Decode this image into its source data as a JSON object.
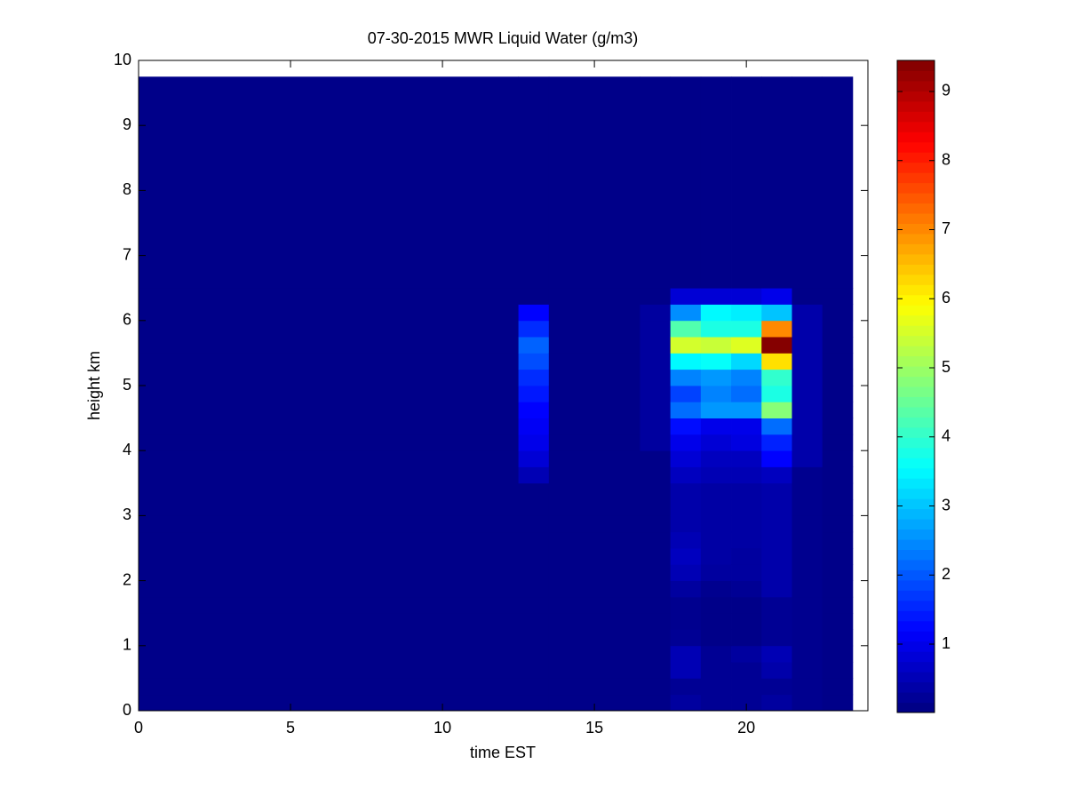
{
  "chart_data": {
    "type": "heatmap",
    "title": "07-30-2015 MWR Liquid Water (g/m3)",
    "x_label": "time EST",
    "y_label": "height km",
    "xlim": [
      0,
      24
    ],
    "xticks": [
      0,
      5,
      10,
      15,
      20
    ],
    "ylim": [
      0,
      10
    ],
    "yticks": [
      0,
      1,
      2,
      3,
      4,
      5,
      6,
      7,
      8,
      9,
      10
    ],
    "colormap": "jet",
    "clim": [
      0.01,
      9.45
    ],
    "cticks": [
      1,
      2,
      3,
      4,
      5,
      6,
      7,
      8,
      9
    ],
    "x_edges": [
      0,
      12.5,
      13.5,
      16.5,
      17.5,
      18.5,
      19.5,
      20.5,
      21.5,
      22.5,
      23.5
    ],
    "y_edges": [
      0,
      0.25,
      0.5,
      0.75,
      1,
      1.25,
      1.5,
      1.75,
      2,
      2.25,
      2.5,
      2.75,
      3,
      3.25,
      3.5,
      3.75,
      4,
      4.25,
      4.5,
      4.75,
      5,
      5.25,
      5.5,
      5.75,
      6,
      6.25,
      6.5,
      9.75
    ],
    "z": [
      [
        0.1,
        0.1,
        0.1,
        0.1,
        0.1,
        0.1,
        0.1,
        0.1,
        0.1,
        0.1,
        0.1,
        0.1,
        0.1,
        0.1,
        0.1,
        0.1,
        0.1,
        0.1,
        0.1,
        0.1,
        0.1,
        0.1,
        0.1,
        0.1,
        0.1,
        0.1,
        0.1
      ],
      [
        0.1,
        0.1,
        0.1,
        0.1,
        0.1,
        0.1,
        0.1,
        0.1,
        0.1,
        0.1,
        0.1,
        0.1,
        0.1,
        0.1,
        0.5,
        0.8,
        1.0,
        1.1,
        1.2,
        1.4,
        1.6,
        1.9,
        2.1,
        1.6,
        1.2,
        0.1,
        0.1
      ],
      [
        0.1,
        0.1,
        0.1,
        0.1,
        0.1,
        0.1,
        0.1,
        0.1,
        0.1,
        0.1,
        0.1,
        0.1,
        0.1,
        0.1,
        0.1,
        0.1,
        0.1,
        0.1,
        0.1,
        0.1,
        0.1,
        0.1,
        0.1,
        0.1,
        0.1,
        0.1,
        0.1
      ],
      [
        0.1,
        0.1,
        0.1,
        0.1,
        0.1,
        0.1,
        0.1,
        0.1,
        0.1,
        0.1,
        0.1,
        0.1,
        0.1,
        0.1,
        0.1,
        0.1,
        0.3,
        0.3,
        0.3,
        0.3,
        0.3,
        0.3,
        0.3,
        0.3,
        0.3,
        0.1,
        0.1
      ],
      [
        0.3,
        0.2,
        0.5,
        0.5,
        0.2,
        0.15,
        0.15,
        0.3,
        0.5,
        0.6,
        0.5,
        0.4,
        0.4,
        0.4,
        0.6,
        0.8,
        1.0,
        1.3,
        2.2,
        1.8,
        2.4,
        3.5,
        5.5,
        4.3,
        2.5,
        0.8,
        0.1
      ],
      [
        0.2,
        0.2,
        0.2,
        0.2,
        0.1,
        0.1,
        0.1,
        0.15,
        0.3,
        0.35,
        0.35,
        0.35,
        0.35,
        0.35,
        0.5,
        0.6,
        0.8,
        1.0,
        2.6,
        2.4,
        2.6,
        3.6,
        5.4,
        3.8,
        3.5,
        0.8,
        0.1
      ],
      [
        0.2,
        0.2,
        0.2,
        0.3,
        0.1,
        0.1,
        0.1,
        0.2,
        0.3,
        0.3,
        0.35,
        0.35,
        0.35,
        0.35,
        0.5,
        0.6,
        0.9,
        1.0,
        2.6,
        2.2,
        2.4,
        3.2,
        5.6,
        3.8,
        3.4,
        0.8,
        0.1
      ],
      [
        0.3,
        0.2,
        0.4,
        0.5,
        0.2,
        0.2,
        0.2,
        0.4,
        0.4,
        0.4,
        0.4,
        0.4,
        0.4,
        0.4,
        0.6,
        1.2,
        1.5,
        2.2,
        4.8,
        3.8,
        4.0,
        6.2,
        9.4,
        7.0,
        3.0,
        1.0,
        0.1
      ],
      [
        0.15,
        0.15,
        0.15,
        0.15,
        0.15,
        0.15,
        0.15,
        0.15,
        0.15,
        0.15,
        0.15,
        0.15,
        0.15,
        0.15,
        0.15,
        0.4,
        0.4,
        0.4,
        0.4,
        0.4,
        0.4,
        0.4,
        0.4,
        0.4,
        0.4,
        0.1,
        0.1
      ],
      [
        0.1,
        0.1,
        0.1,
        0.1,
        0.1,
        0.1,
        0.1,
        0.1,
        0.1,
        0.1,
        0.1,
        0.1,
        0.1,
        0.1,
        0.1,
        0.1,
        0.1,
        0.1,
        0.1,
        0.1,
        0.1,
        0.1,
        0.1,
        0.1,
        0.1,
        0.1,
        0.1
      ]
    ]
  }
}
